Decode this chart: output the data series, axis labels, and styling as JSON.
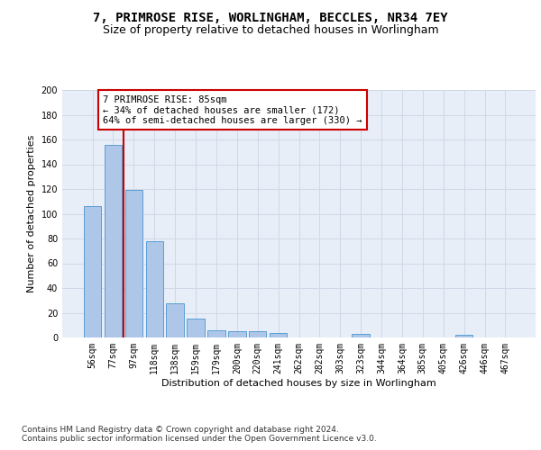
{
  "title_line1": "7, PRIMROSE RISE, WORLINGHAM, BECCLES, NR34 7EY",
  "title_line2": "Size of property relative to detached houses in Worlingham",
  "xlabel": "Distribution of detached houses by size in Worlingham",
  "ylabel": "Number of detached properties",
  "categories": [
    "56sqm",
    "77sqm",
    "97sqm",
    "118sqm",
    "138sqm",
    "159sqm",
    "179sqm",
    "200sqm",
    "220sqm",
    "241sqm",
    "262sqm",
    "282sqm",
    "303sqm",
    "323sqm",
    "344sqm",
    "364sqm",
    "385sqm",
    "405sqm",
    "426sqm",
    "446sqm",
    "467sqm"
  ],
  "values": [
    106,
    156,
    119,
    78,
    28,
    15,
    6,
    5,
    5,
    4,
    0,
    0,
    0,
    3,
    0,
    0,
    0,
    0,
    2,
    0,
    0
  ],
  "bar_color": "#aec6e8",
  "bar_edge_color": "#5a9fd4",
  "vline_x_index": 1.5,
  "vline_color": "#cc0000",
  "annotation_text": "7 PRIMROSE RISE: 85sqm\n← 34% of detached houses are smaller (172)\n64% of semi-detached houses are larger (330) →",
  "annotation_box_color": "#ffffff",
  "annotation_box_edge": "#cc0000",
  "ylim": [
    0,
    200
  ],
  "yticks": [
    0,
    20,
    40,
    60,
    80,
    100,
    120,
    140,
    160,
    180,
    200
  ],
  "grid_color": "#d0d8e8",
  "bg_color": "#e8eef7",
  "footer": "Contains HM Land Registry data © Crown copyright and database right 2024.\nContains public sector information licensed under the Open Government Licence v3.0.",
  "title_fontsize": 10,
  "subtitle_fontsize": 9,
  "axis_label_fontsize": 8,
  "tick_fontsize": 7,
  "annotation_fontsize": 7.5,
  "footer_fontsize": 6.5
}
